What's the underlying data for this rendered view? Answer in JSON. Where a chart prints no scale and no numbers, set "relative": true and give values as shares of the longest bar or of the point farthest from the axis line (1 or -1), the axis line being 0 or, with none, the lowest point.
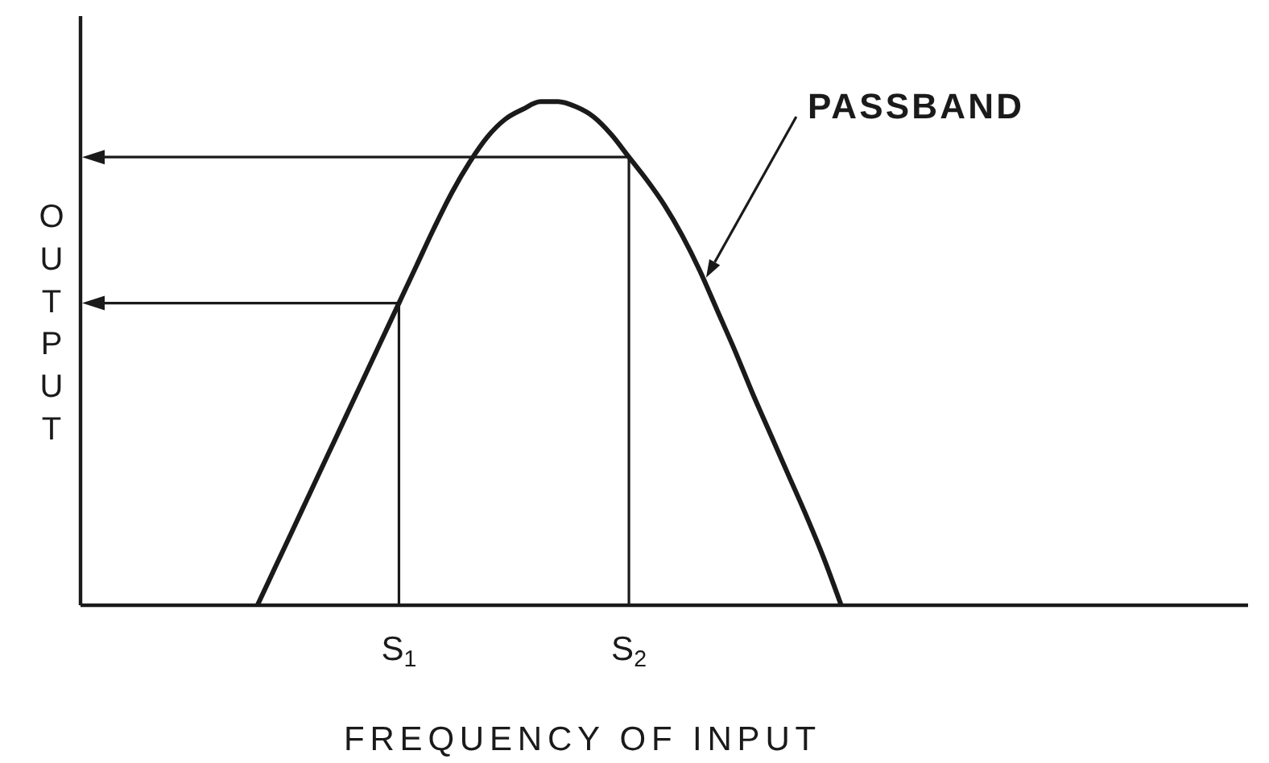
{
  "chart_data": {
    "type": "line",
    "relative": true,
    "xlabel": "FREQUENCY OF INPUT",
    "ylabel": "OUTPUT",
    "color": "#1a1a1a",
    "categories": [
      null,
      null,
      null,
      null,
      null,
      null,
      null,
      null,
      null,
      null,
      null,
      null,
      null,
      null,
      null,
      null,
      null,
      null,
      "S$_{1}$",
      null,
      null,
      null,
      null,
      null,
      null,
      null,
      null,
      null,
      null,
      null,
      null,
      "S$_{2}$",
      null,
      null,
      null,
      null,
      null,
      null,
      null,
      null,
      null,
      null,
      null,
      null,
      null,
      null,
      null,
      null,
      null,
      null,
      null,
      null,
      null,
      null,
      null,
      null,
      null,
      null,
      null,
      null,
      null,
      null,
      null,
      null,
      null,
      null,
      null
    ],
    "values": [
      null,
      null,
      null,
      null,
      null,
      null,
      null,
      null,
      null,
      null,
      0,
      0.075,
      0.15,
      0.225,
      0.3,
      0.375,
      0.45,
      0.525,
      0.6,
      0.675,
      0.75,
      0.82,
      0.88,
      0.93,
      0.965,
      0.985,
      1,
      1,
      0.99,
      0.97,
      0.935,
      0.89,
      0.845,
      0.795,
      0.735,
      0.665,
      0.585,
      0.505,
      0.42,
      0.34,
      0.26,
      0.18,
      0.095,
      0,
      null,
      null,
      null,
      null,
      null,
      null,
      null,
      null,
      null,
      null,
      null,
      null,
      null,
      null,
      null,
      null,
      null,
      null,
      null,
      null,
      null,
      null,
      null
    ],
    "ref_lines": [
      {
        "axis": "x",
        "value": "S$_{1}$",
        "color": "#1a1a1a"
      },
      {
        "axis": "x",
        "value": "S$_{2}$",
        "color": "#1a1a1a"
      },
      {
        "axis": "y",
        "value": 0.6,
        "color": "#1a1a1a"
      },
      {
        "axis": "y",
        "value": 0.89,
        "color": "#1a1a1a"
      }
    ],
    "annotations": [
      "PASSBAND"
    ]
  }
}
